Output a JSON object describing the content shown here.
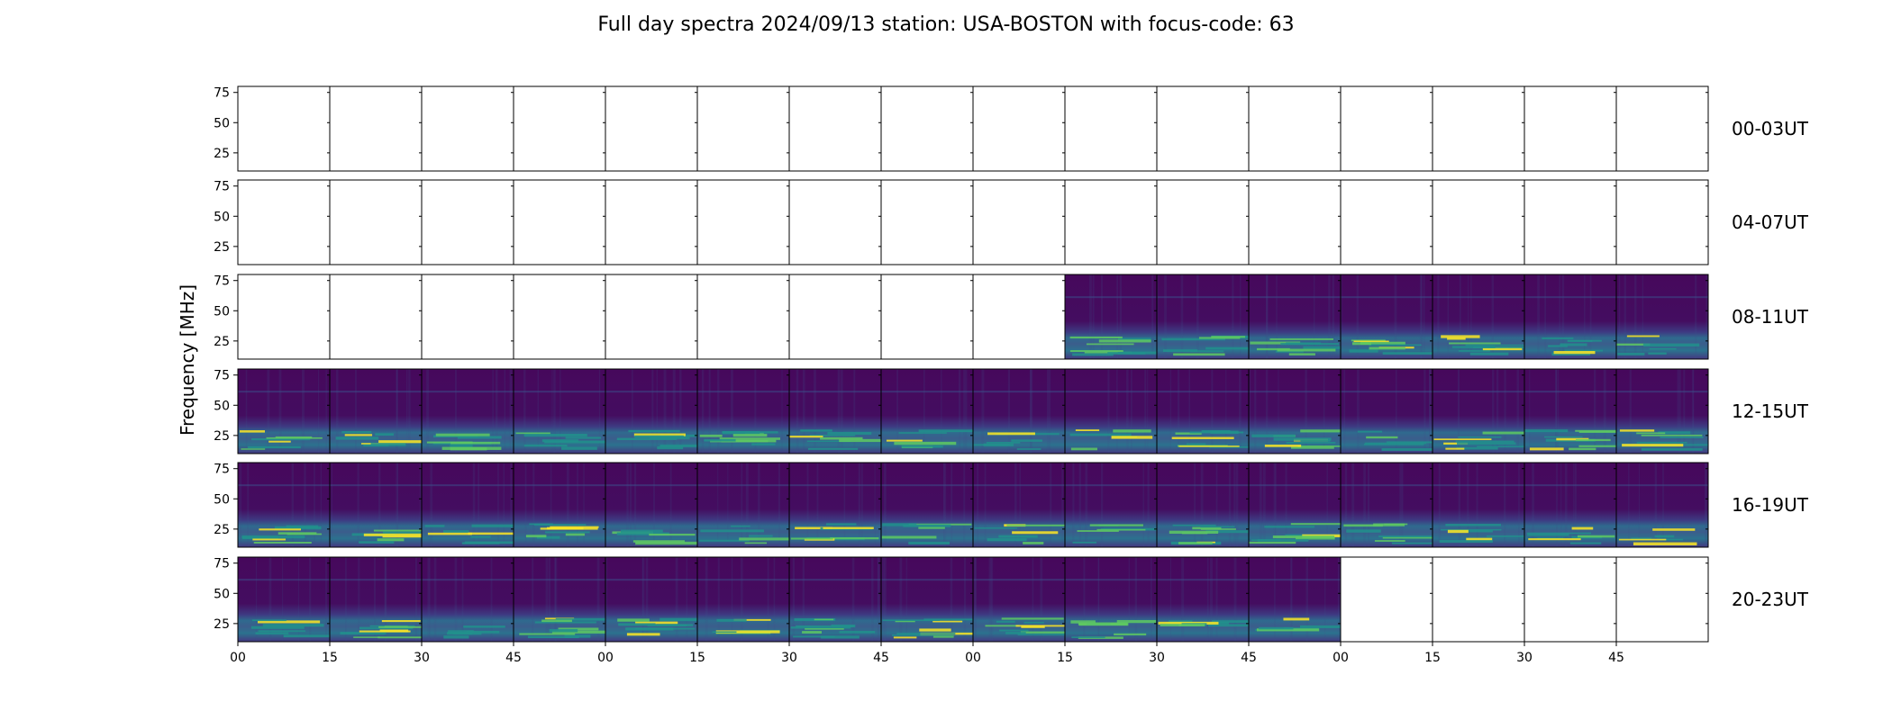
{
  "chart_data": {
    "type": "heatmap",
    "title": "Full day spectra 2024/09/13 station: USA-BOSTON with focus-code: 63",
    "ylabel": "Frequency [MHz]",
    "xlabel": "",
    "ylim": [
      10,
      80
    ],
    "y_ticks": [
      25,
      50,
      75
    ],
    "x_tick_labels": [
      "00",
      "15",
      "30",
      "45",
      "00",
      "15",
      "30",
      "45",
      "00",
      "15",
      "30",
      "45",
      "00",
      "15",
      "30",
      "45"
    ],
    "colormap": "viridis",
    "panels_per_row": 16,
    "minutes_per_panel": 15,
    "rows": [
      {
        "label": "00-03UT",
        "panels": [
          0,
          0,
          0,
          0,
          0,
          0,
          0,
          0,
          0,
          0,
          0,
          0,
          0,
          0,
          0,
          0
        ]
      },
      {
        "label": "04-07UT",
        "panels": [
          0,
          0,
          0,
          0,
          0,
          0,
          0,
          0,
          0,
          0,
          0,
          0,
          0,
          0,
          0,
          0
        ]
      },
      {
        "label": "08-11UT",
        "panels": [
          0,
          0,
          0,
          0,
          0,
          0,
          0,
          0,
          0,
          1,
          1,
          1,
          1,
          1,
          1,
          1
        ]
      },
      {
        "label": "12-15UT",
        "panels": [
          1,
          1,
          1,
          1,
          1,
          1,
          1,
          1,
          1,
          1,
          1,
          1,
          1,
          1,
          1,
          1
        ]
      },
      {
        "label": "16-19UT",
        "panels": [
          1,
          1,
          1,
          1,
          1,
          1,
          1,
          1,
          1,
          1,
          1,
          1,
          1,
          1,
          1,
          1
        ]
      },
      {
        "label": "20-23UT",
        "panels": [
          1,
          1,
          1,
          1,
          1,
          1,
          1,
          1,
          1,
          1,
          1,
          1,
          0,
          0,
          0,
          0
        ]
      }
    ],
    "colors": {
      "background": "#44015a",
      "mid": "#3b528b",
      "teal": "#21918c",
      "green": "#5ec962",
      "yellow": "#fde725"
    }
  }
}
